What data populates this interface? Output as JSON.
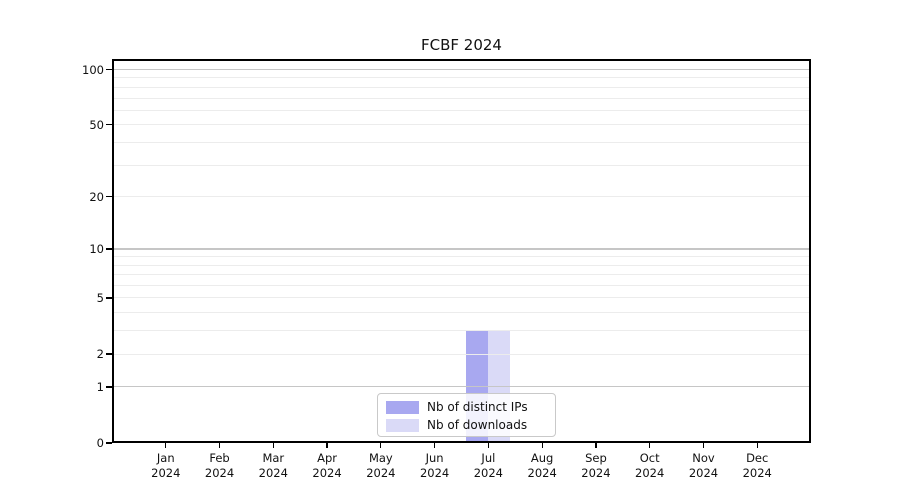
{
  "chart_data": {
    "type": "bar",
    "title": "FCBF 2024",
    "categories": [
      "Jan 2024",
      "Feb 2024",
      "Mar 2024",
      "Apr 2024",
      "May 2024",
      "Jun 2024",
      "Jul 2024",
      "Aug 2024",
      "Sep 2024",
      "Oct 2024",
      "Nov 2024",
      "Dec 2024"
    ],
    "series": [
      {
        "name": "Nb of distinct IPs",
        "color": "#a8a8f0",
        "values": [
          0,
          0,
          0,
          0,
          0,
          0,
          3,
          0,
          0,
          0,
          0,
          0
        ]
      },
      {
        "name": "Nb of downloads",
        "color": "#dadaf7",
        "values": [
          0,
          0,
          0,
          0,
          0,
          0,
          3,
          0,
          0,
          0,
          0,
          0
        ]
      }
    ],
    "xlabel": "",
    "ylabel": "",
    "y_scale": "log10(value+1)",
    "y_ticks": [
      0,
      1,
      2,
      5,
      10,
      20,
      50,
      100
    ],
    "y_major_gridlines": [
      1,
      10,
      100
    ],
    "y_minor_gridlines": [
      2,
      3,
      4,
      5,
      6,
      7,
      8,
      9,
      20,
      30,
      40,
      50,
      60,
      70,
      80,
      90
    ],
    "ylim": [
      0,
      114
    ],
    "grid": true,
    "legend_position": "lower center"
  },
  "legend": {
    "items": [
      {
        "label": "Nb of distinct IPs",
        "color": "#a8a8f0"
      },
      {
        "label": "Nb of downloads",
        "color": "#dadaf7"
      }
    ]
  },
  "colors": {
    "grid_major": "#c6c6c6",
    "grid_minor": "#ececec",
    "axis": "#000000",
    "background": "#ffffff"
  }
}
